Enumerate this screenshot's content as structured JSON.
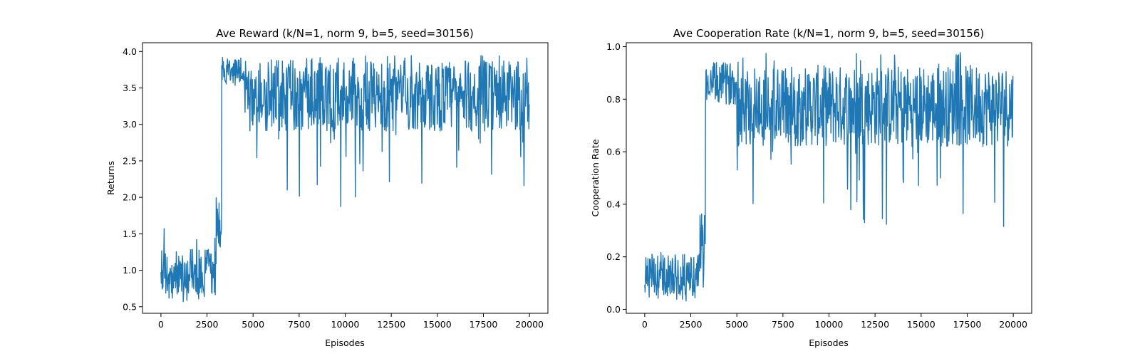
{
  "figure": {
    "line_color": "#1f77b4",
    "background": "#ffffff"
  },
  "chart_data": [
    {
      "type": "line",
      "title": "Ave Reward (k/N=1, norm 9, b=5, seed=30156)",
      "xlabel": "Episodes",
      "ylabel": "Returns",
      "xlim": [
        -1000,
        21000
      ],
      "ylim": [
        0.41,
        4.12
      ],
      "xticks": [
        0,
        2500,
        5000,
        7500,
        10000,
        12500,
        15000,
        17500,
        20000
      ],
      "xtick_labels": [
        "0",
        "2500",
        "5000",
        "7500",
        "10000",
        "12500",
        "15000",
        "17500",
        "20000"
      ],
      "yticks": [
        0.5,
        1.0,
        1.5,
        2.0,
        2.5,
        3.0,
        3.5,
        4.0
      ],
      "ytick_labels": [
        "0.5",
        "1.0",
        "1.5",
        "2.0",
        "2.5",
        "3.0",
        "3.5",
        "4.0"
      ],
      "grid": false,
      "series": [
        {
          "segments": [
            {
              "x_start": 0,
              "x_end": 3000,
              "band_low": 0.67,
              "band_high": 1.3,
              "spike_high": 1.65,
              "spike_low": 0.5
            },
            {
              "x_start": 3000,
              "x_end": 3300,
              "band_low": 1.35,
              "band_high": 2.0,
              "spike_high": 2.75,
              "spike_low": 1.3
            },
            {
              "x_start": 3300,
              "x_end": 4500,
              "band_low": 3.55,
              "band_high": 3.9,
              "spike_high": 3.92,
              "spike_low": 3.5
            },
            {
              "x_start": 4500,
              "x_end": 20000,
              "band_low": 2.9,
              "band_high": 3.88,
              "spike_high": 3.95,
              "spike_low": 1.87
            }
          ]
        }
      ]
    },
    {
      "type": "line",
      "title": "Ave Cooperation Rate (k/N=1, norm 9, b=5, seed=30156)",
      "xlabel": "Episodes",
      "ylabel": "Cooperation Rate",
      "xlim": [
        -1000,
        21000
      ],
      "ylim": [
        -0.015,
        1.015
      ],
      "xticks": [
        0,
        2500,
        5000,
        7500,
        10000,
        12500,
        15000,
        17500,
        20000
      ],
      "xtick_labels": [
        "0",
        "2500",
        "5000",
        "7500",
        "10000",
        "12500",
        "15000",
        "17500",
        "20000"
      ],
      "yticks": [
        0.0,
        0.2,
        0.4,
        0.6,
        0.8,
        1.0
      ],
      "ytick_labels": [
        "0.0",
        "0.2",
        "0.4",
        "0.6",
        "0.8",
        "1.0"
      ],
      "grid": false,
      "series": [
        {
          "segments": [
            {
              "x_start": 0,
              "x_end": 3000,
              "band_low": 0.05,
              "band_high": 0.21,
              "spike_high": 0.29,
              "spike_low": 0.03
            },
            {
              "x_start": 3000,
              "x_end": 3300,
              "band_low": 0.08,
              "band_high": 0.38,
              "spike_high": 0.62,
              "spike_low": 0.06
            },
            {
              "x_start": 3300,
              "x_end": 5000,
              "band_low": 0.78,
              "band_high": 0.94,
              "spike_high": 0.97,
              "spike_low": 0.65
            },
            {
              "x_start": 5000,
              "x_end": 20000,
              "band_low": 0.62,
              "band_high": 0.93,
              "spike_high": 0.98,
              "spike_low": 0.31
            }
          ]
        }
      ]
    }
  ]
}
